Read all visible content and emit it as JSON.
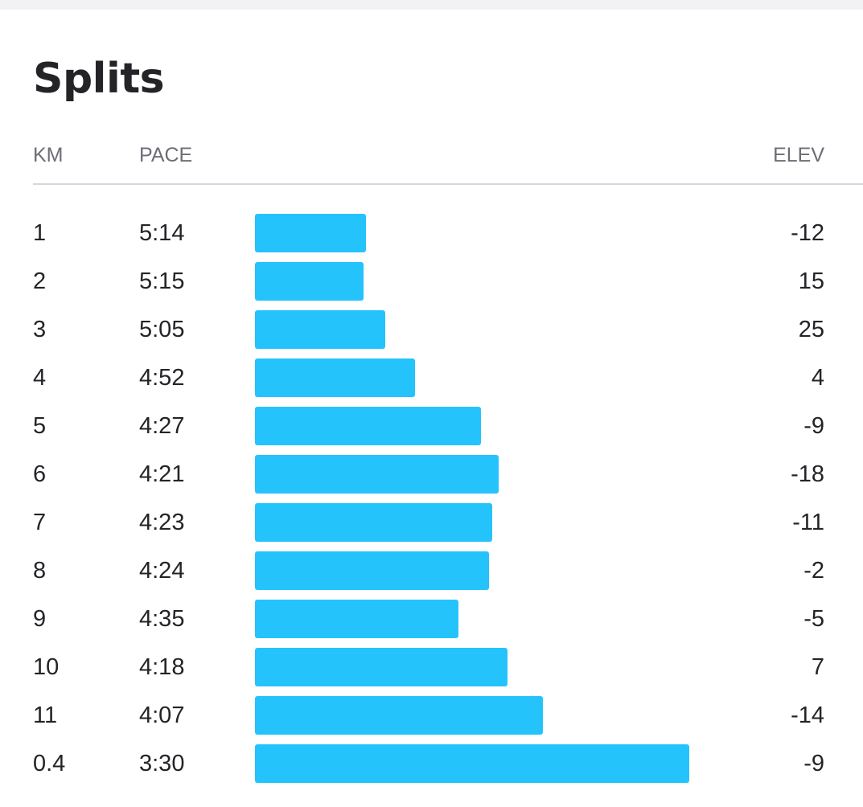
{
  "title": "Splits",
  "headers": {
    "km": "KM",
    "pace": "PACE",
    "elev": "ELEV"
  },
  "colors": {
    "bar": "#25c3fc",
    "text": "#242428",
    "header": "#6d6d78"
  },
  "splits": [
    {
      "km": "1",
      "pace": "5:14",
      "elev": "-12"
    },
    {
      "km": "2",
      "pace": "5:15",
      "elev": "15"
    },
    {
      "km": "3",
      "pace": "5:05",
      "elev": "25"
    },
    {
      "km": "4",
      "pace": "4:52",
      "elev": "4"
    },
    {
      "km": "5",
      "pace": "4:27",
      "elev": "-9"
    },
    {
      "km": "6",
      "pace": "4:21",
      "elev": "-18"
    },
    {
      "km": "7",
      "pace": "4:23",
      "elev": "-11"
    },
    {
      "km": "8",
      "pace": "4:24",
      "elev": "-2"
    },
    {
      "km": "9",
      "pace": "4:35",
      "elev": "-5"
    },
    {
      "km": "10",
      "pace": "4:18",
      "elev": "7"
    },
    {
      "km": "11",
      "pace": "4:07",
      "elev": "-14"
    },
    {
      "km": "0.4",
      "pace": "3:30",
      "elev": "-9"
    }
  ]
}
